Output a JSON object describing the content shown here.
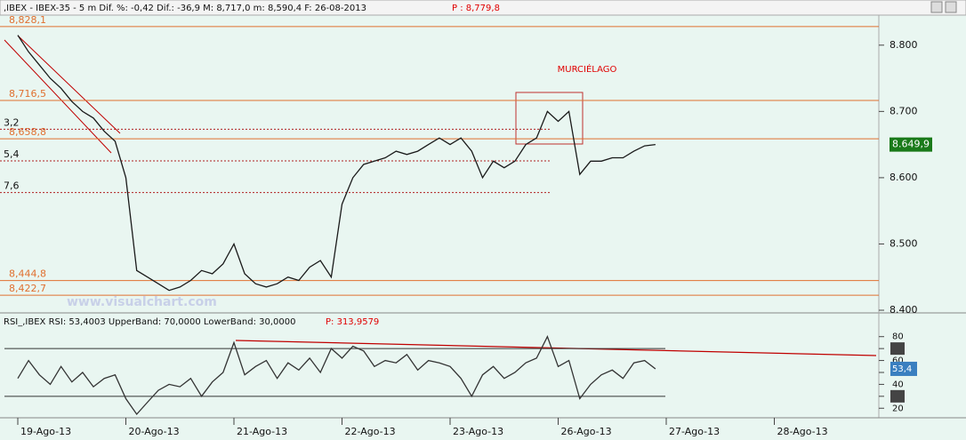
{
  "header": {
    "text": ",IBEX - IBEX-35 - 5 m Dif. %: -0,42 Dif.: -36,9 M: 8,717,0 m: 8,590,4 F: 26-08-2013",
    "p_label": "P : 8,779,8"
  },
  "chart_data": [
    {
      "type": "line",
      "values": [
        8815,
        8790,
        8770,
        8750,
        8735,
        8715,
        8700,
        8690,
        8670,
        8655,
        8600,
        8460,
        8450,
        8440,
        8430,
        8435,
        8445,
        8460,
        8455,
        8470,
        8500,
        8455,
        8440,
        8435,
        8440,
        8450,
        8445,
        8465,
        8475,
        8450,
        8560,
        8600,
        8620,
        8625,
        8630,
        8640,
        8635,
        8640,
        8650,
        8660,
        8650,
        8660,
        8640,
        8600,
        8625,
        8615,
        8625,
        8650,
        8660,
        8700,
        8685,
        8700,
        8605,
        8625,
        8625,
        8630,
        8630,
        8640,
        8648,
        8650,
        null,
        null,
        null,
        null,
        null,
        null,
        null,
        null,
        null,
        null,
        null,
        null,
        null,
        null,
        null,
        null,
        null,
        null,
        null,
        null
      ],
      "color": "#1a1a1a",
      "ylim": [
        8396,
        8844
      ],
      "yticks": [
        {
          "value": 8400,
          "label": "8.400"
        },
        {
          "value": 8500,
          "label": "8.500"
        },
        {
          "value": 8600,
          "label": "8.600"
        },
        {
          "value": 8700,
          "label": "8.700"
        },
        {
          "value": 8800,
          "label": "8.800"
        }
      ],
      "levels": [
        {
          "value": 8828.1,
          "label": "8,828,1"
        },
        {
          "value": 8716.5,
          "label": "8,716,5"
        },
        {
          "value": 8658.8,
          "label": "8,658,8"
        },
        {
          "value": 8444.8,
          "label": "8,444,8"
        },
        {
          "value": 8422.7,
          "label": "8,422,7"
        }
      ],
      "dotted_levels": [
        {
          "value": 8673.2,
          "label": "3,2"
        },
        {
          "value": 8625.4,
          "label": "5,4"
        },
        {
          "value": 8577.6,
          "label": "7,6"
        }
      ],
      "last_value_label": "8.649,9",
      "annotation": "MURCIÉLAGO",
      "watermark": "www.visualchart.com"
    },
    {
      "type": "line",
      "title": "RSI_,IBEX RSI: 53,4003 UpperBand: 70,0000 LowerBand: 30,0000",
      "p_label": "P: 313,9579",
      "categories": [
        "19-Ago-13",
        null,
        null,
        null,
        null,
        null,
        null,
        null,
        null,
        null,
        "20-Ago-13",
        null,
        null,
        null,
        null,
        null,
        null,
        null,
        null,
        null,
        "21-Ago-13",
        null,
        null,
        null,
        null,
        null,
        null,
        null,
        null,
        null,
        "22-Ago-13",
        null,
        null,
        null,
        null,
        null,
        null,
        null,
        null,
        null,
        "23-Ago-13",
        null,
        null,
        null,
        null,
        null,
        null,
        null,
        null,
        null,
        "26-Ago-13",
        null,
        null,
        null,
        null,
        null,
        null,
        null,
        null,
        null,
        "27-Ago-13",
        null,
        null,
        null,
        null,
        null,
        null,
        null,
        null,
        null,
        "28-Ago-13",
        null,
        null,
        null,
        null,
        null,
        null,
        null,
        null,
        null
      ],
      "values": [
        45,
        60,
        48,
        40,
        55,
        42,
        50,
        38,
        45,
        48,
        28,
        15,
        25,
        35,
        40,
        38,
        45,
        30,
        42,
        50,
        75,
        48,
        55,
        60,
        45,
        58,
        52,
        62,
        50,
        70,
        62,
        72,
        68,
        55,
        60,
        58,
        65,
        52,
        60,
        58,
        55,
        45,
        30,
        48,
        55,
        45,
        50,
        58,
        62,
        80,
        55,
        60,
        28,
        40,
        48,
        52,
        45,
        58,
        60,
        53,
        null,
        null,
        null,
        null,
        null,
        null,
        null,
        null,
        null,
        null,
        null,
        null,
        null,
        null,
        null,
        null,
        null,
        null,
        null,
        null
      ],
      "color": "#333333",
      "bands": [
        70,
        30
      ],
      "ylim": [
        12,
        85
      ],
      "yticks": [
        20,
        30,
        40,
        50,
        60,
        70,
        80
      ],
      "last_value_label": "53,4"
    }
  ]
}
